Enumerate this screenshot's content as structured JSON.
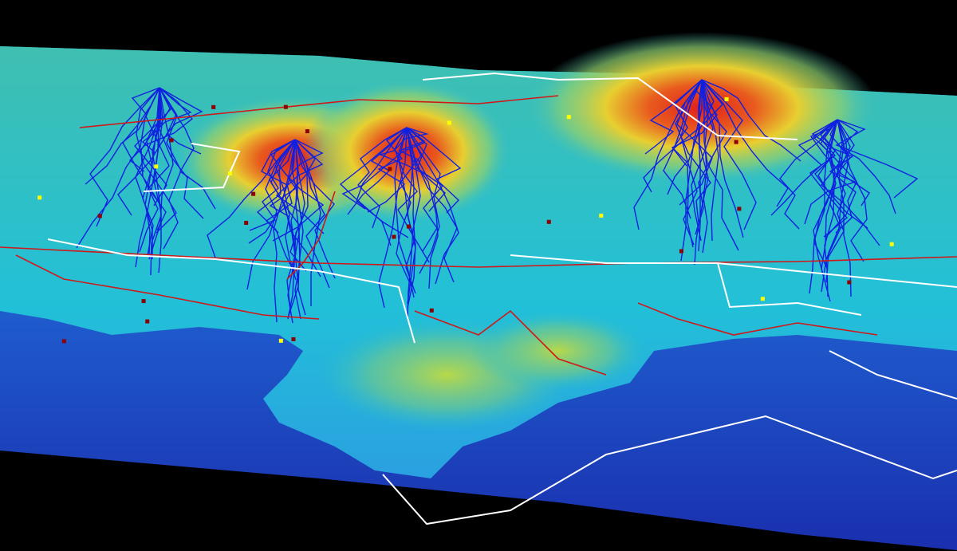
{
  "map": {
    "view": "3d-terrain-perspective",
    "colors": {
      "background": "#000000",
      "deep_ocean": "#1a2fbf",
      "shallow_ocean": "#1f6fd8",
      "lowland": "#22c3d6",
      "midland": "#7fd08a",
      "highland": "#e8d23a",
      "peak": "#e02a1a",
      "rivers": "#1020e0",
      "roads": "#d01818",
      "boundaries": "#ffffff",
      "markers_city": "#8b0000",
      "markers_town": "#ffff00"
    },
    "layers": [
      "elevation",
      "rivers",
      "roads",
      "boundaries",
      "settlements"
    ]
  }
}
